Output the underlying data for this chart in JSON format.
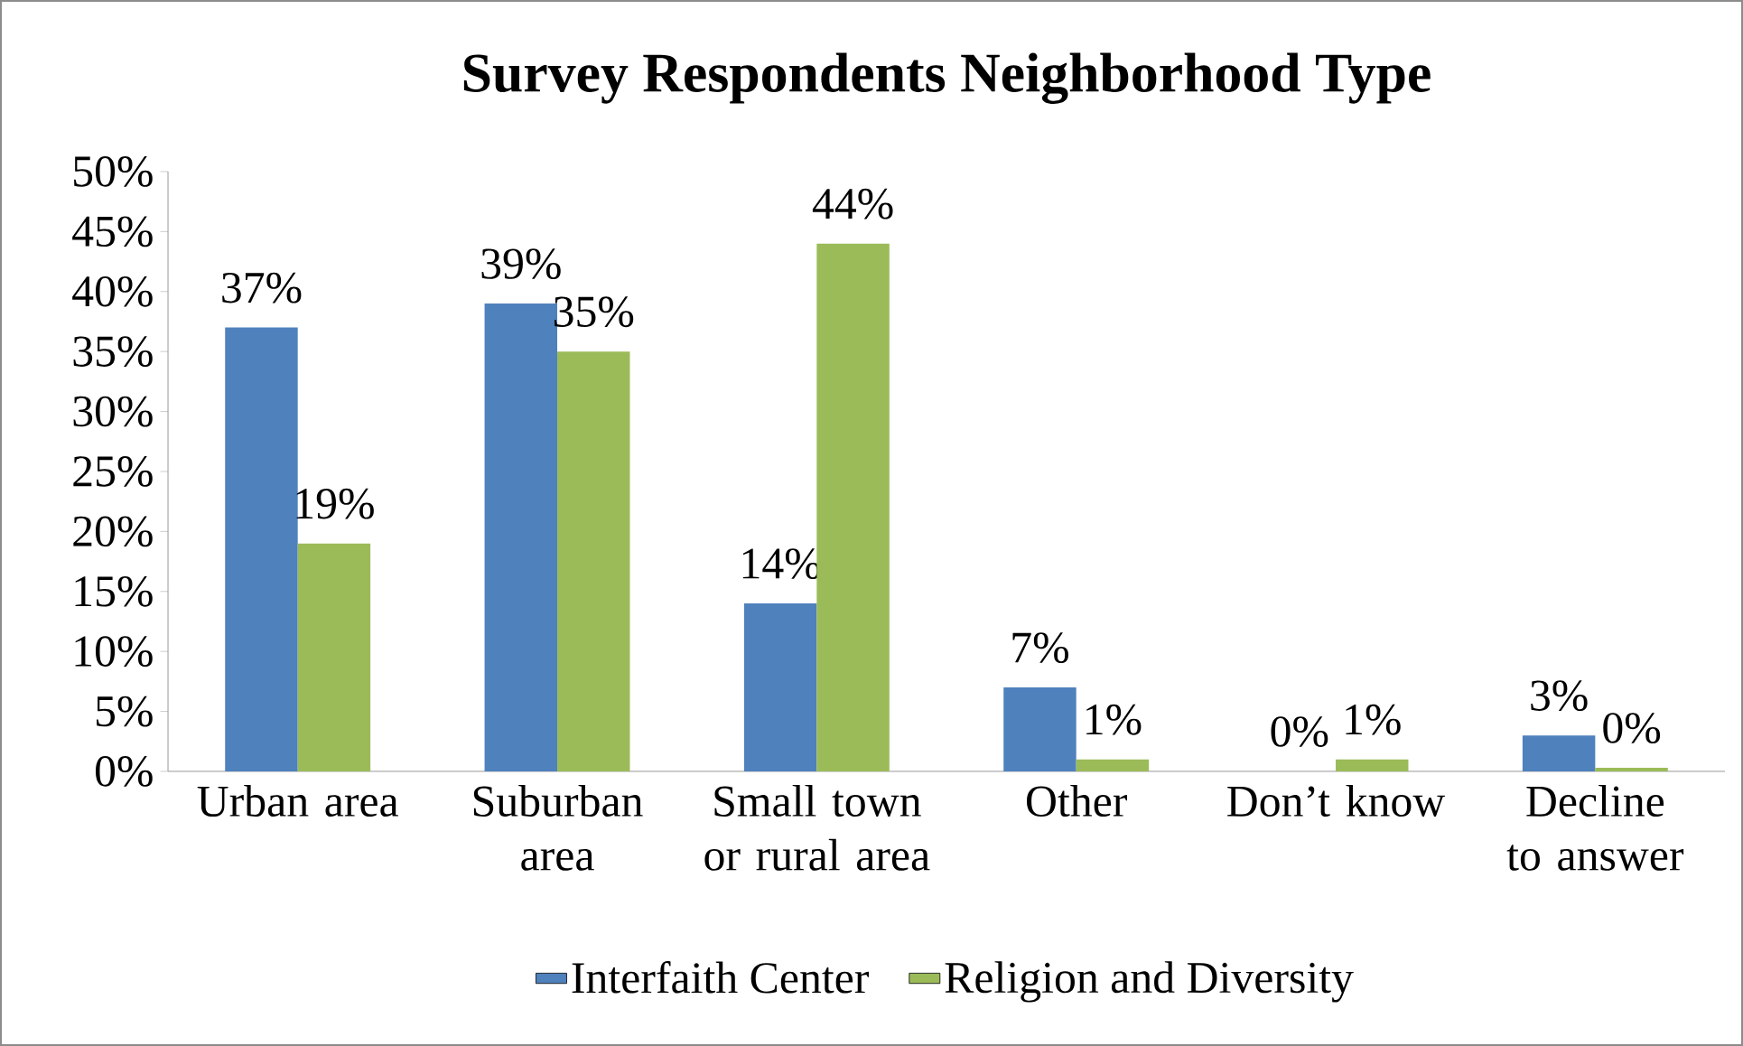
{
  "chart_data": {
    "type": "bar",
    "title": "Survey Respondents Neighborhood Type",
    "categories": [
      "Urban area",
      "Suburban area",
      "Small town or rural area",
      "Other",
      "Don’t know",
      "Decline to answer"
    ],
    "series": [
      {
        "name": "Interfaith Center",
        "color": "#4f81bd",
        "values": [
          37,
          39,
          14,
          7,
          0,
          3
        ],
        "value_labels": [
          "37%",
          "39%",
          "14%",
          "7%",
          "0%",
          "3%"
        ]
      },
      {
        "name": "Religion and Diversity",
        "color": "#9bbb59",
        "values": [
          19,
          35,
          44,
          1,
          1,
          0.3
        ],
        "value_labels": [
          "19%",
          "35%",
          "44%",
          "1%",
          "1%",
          "0%"
        ]
      }
    ],
    "ylim": [
      0,
      50
    ],
    "yticks": [
      {
        "value": 0,
        "label": "0%"
      },
      {
        "value": 5,
        "label": "5%"
      },
      {
        "value": 10,
        "label": "10%"
      },
      {
        "value": 15,
        "label": "15%"
      },
      {
        "value": 20,
        "label": "20%"
      },
      {
        "value": 25,
        "label": "25%"
      },
      {
        "value": 30,
        "label": "30%"
      },
      {
        "value": 35,
        "label": "35%"
      },
      {
        "value": 40,
        "label": "40%"
      },
      {
        "value": 45,
        "label": "45%"
      },
      {
        "value": 50,
        "label": "50%"
      }
    ],
    "legend": "bottom"
  }
}
